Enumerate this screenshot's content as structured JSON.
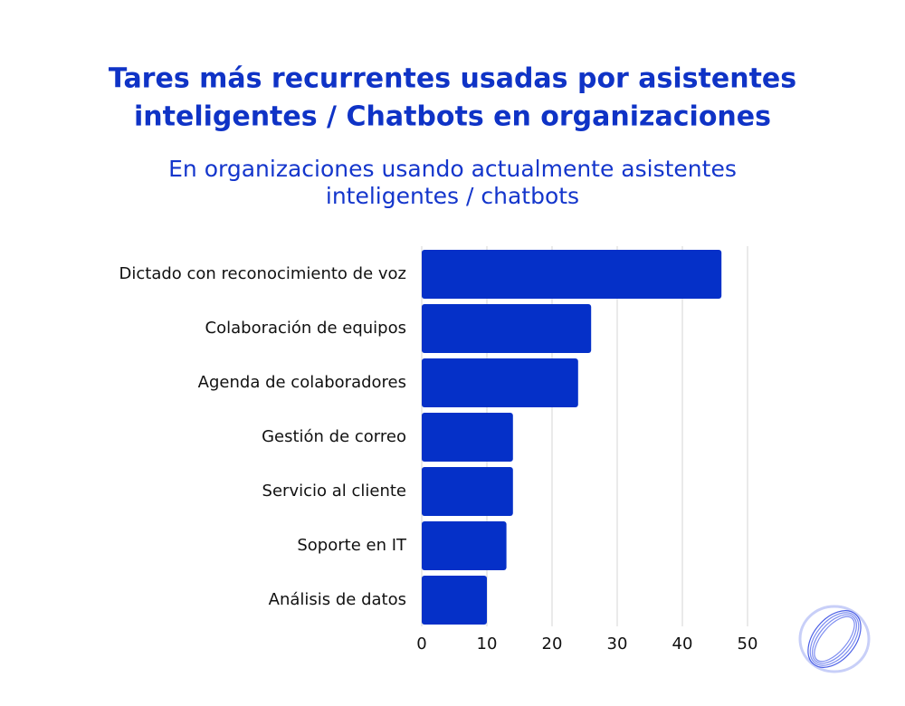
{
  "chart_data": {
    "type": "bar",
    "orientation": "horizontal",
    "title": [
      "Tares más recurrentes usadas por asistentes",
      "inteligentes / Chatbots en organizaciones"
    ],
    "subtitle": [
      "En organizaciones usando actualmente asistentes",
      "inteligentes / chatbots"
    ],
    "categories": [
      "Dictado con reconocimiento de voz",
      "Colaboración de equipos",
      "Agenda de colaboradores",
      "Gestión de correo",
      "Servicio al cliente",
      "Soporte en IT",
      "Análisis de datos"
    ],
    "values": [
      46,
      26,
      24,
      14,
      14,
      13,
      10
    ],
    "color": "#0530c8",
    "xlim": [
      0,
      50
    ],
    "xticks": [
      0,
      10,
      20,
      30,
      40,
      50
    ],
    "grid": true
  }
}
